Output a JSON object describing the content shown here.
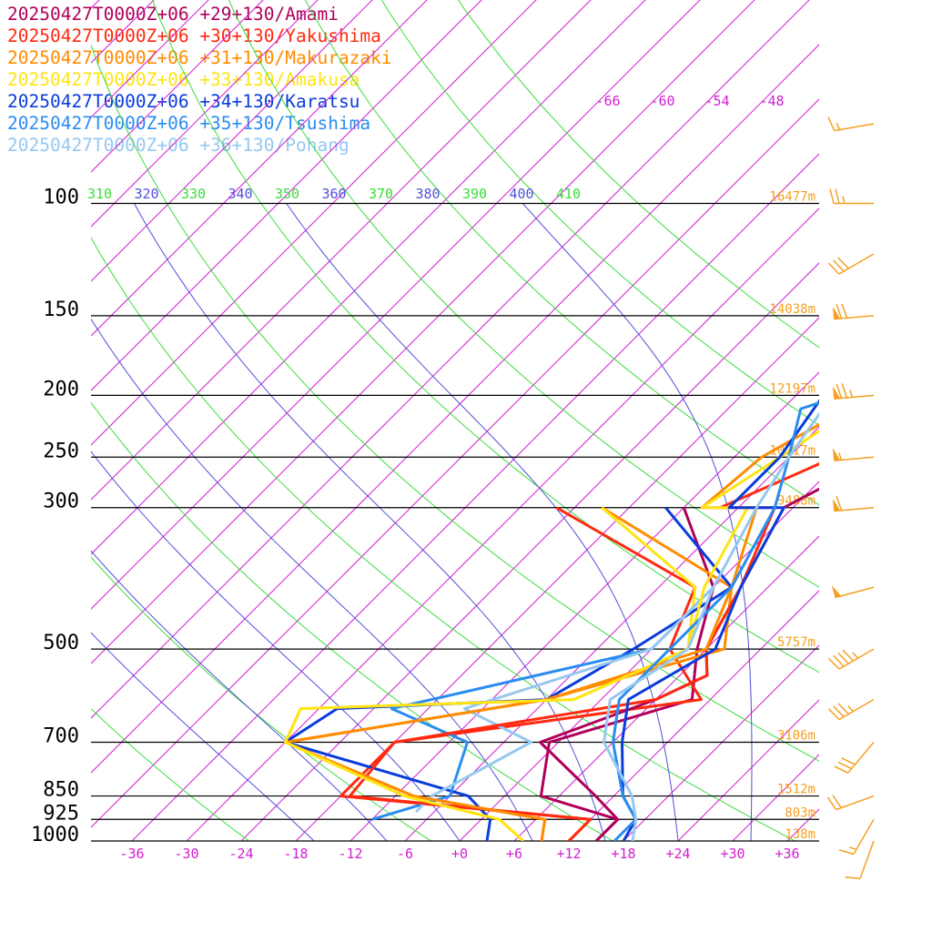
{
  "chart_data": {
    "type": "line",
    "y_scale": "log",
    "pressure_ticks": [
      100,
      150,
      200,
      250,
      300,
      500,
      700,
      850,
      925,
      1000
    ],
    "height_labels": [
      {
        "p": 100,
        "text": "16477m"
      },
      {
        "p": 150,
        "text": "14038m"
      },
      {
        "p": 200,
        "text": "12197m"
      },
      {
        "p": 250,
        "text": "10717m"
      },
      {
        "p": 300,
        "text": "9488m"
      },
      {
        "p": 500,
        "text": "5757m"
      },
      {
        "p": 700,
        "text": "3106m"
      },
      {
        "p": 850,
        "text": "1512m"
      },
      {
        "p": 925,
        "text": "803m"
      },
      {
        "p": 1000,
        "text": "138m"
      }
    ],
    "temperature_ticks": [
      -36,
      -30,
      -24,
      -18,
      -12,
      -6,
      0,
      6,
      12,
      18,
      24,
      30,
      36
    ],
    "temperature_tick_labels": [
      "-36",
      "-30",
      "-24",
      "-18",
      "-12",
      "-6",
      "+0",
      "+6",
      "+12",
      "+18",
      "+24",
      "+30",
      "+36"
    ],
    "top_temperature_labels": [
      "-66",
      "-60",
      "-54",
      "-48"
    ],
    "theta_labels": [
      {
        "text": "310",
        "color": "#3cdc3c"
      },
      {
        "text": "320",
        "color": "#5050dc"
      },
      {
        "text": "330",
        "color": "#3cdc3c"
      },
      {
        "text": "340",
        "color": "#5050dc"
      },
      {
        "text": "350",
        "color": "#3cdc3c"
      },
      {
        "text": "360",
        "color": "#5050dc"
      },
      {
        "text": "370",
        "color": "#3cdc3c"
      },
      {
        "text": "380",
        "color": "#5050dc"
      },
      {
        "text": "390",
        "color": "#3cdc3c"
      },
      {
        "text": "400",
        "color": "#5050dc"
      },
      {
        "text": "410",
        "color": "#3cdc3c"
      }
    ],
    "series": [
      {
        "name": "20250427T0000Z+06 +29+130/Amami",
        "color": "#b0005a",
        "points": [
          [
            15,
            1000
          ],
          [
            15,
            925
          ],
          [
            10,
            850
          ],
          [
            -2,
            700
          ],
          [
            6,
            600
          ],
          [
            9,
            550
          ],
          [
            6,
            500
          ],
          [
            3,
            400
          ],
          [
            -1,
            300
          ],
          [
            4,
            250
          ],
          [
            3,
            200
          ],
          [
            -3,
            150
          ],
          [
            -5,
            120
          ],
          [
            -7,
            100
          ],
          [
            -8,
            90
          ],
          [
            -13,
            80
          ],
          [
            -25,
            70
          ],
          [
            -37,
            60
          ],
          [
            -44,
            50
          ]
        ]
      },
      {
        "name": "20250427T0000Z+06 +30+130/Yakushima",
        "color": "#ff2a10",
        "points": [
          [
            12,
            1000
          ],
          [
            12,
            925
          ],
          [
            -17,
            850
          ],
          [
            -18,
            700
          ],
          [
            6,
            600
          ],
          [
            9,
            550
          ],
          [
            6,
            500
          ],
          [
            3,
            400
          ],
          [
            -2,
            300
          ],
          [
            -8,
            300
          ],
          [
            -1,
            250
          ],
          [
            2,
            200
          ],
          [
            -3,
            150
          ],
          [
            -4,
            120
          ],
          [
            -4,
            100
          ],
          [
            -10,
            80
          ],
          [
            -22,
            70
          ],
          [
            -36,
            60
          ],
          [
            -44,
            50
          ]
        ]
      },
      {
        "name": "20250427T0000Z+06 +31+130/Makurazaki",
        "color": "#ff8c00",
        "points": [
          [
            9,
            1000
          ],
          [
            7,
            925
          ],
          [
            -10,
            850
          ],
          [
            -30,
            700
          ],
          [
            -6,
            600
          ],
          [
            6,
            500
          ],
          [
            2,
            400
          ],
          [
            -4,
            300
          ],
          [
            -10,
            300
          ],
          [
            -9,
            250
          ],
          [
            -6,
            220
          ],
          [
            -1,
            200
          ],
          [
            -2,
            150
          ],
          [
            -3,
            120
          ],
          [
            0,
            100
          ],
          [
            -7,
            80
          ],
          [
            -18,
            70
          ],
          [
            -33,
            60
          ],
          [
            -44,
            50
          ]
        ]
      },
      {
        "name": "20250427T0000Z+06 +33+130/Amakusa",
        "color": "#ffe414",
        "points": [
          [
            7,
            1000
          ],
          [
            2,
            925
          ],
          [
            -11,
            850
          ],
          [
            -30,
            700
          ],
          [
            -32,
            620
          ],
          [
            -3,
            600
          ],
          [
            4,
            500
          ],
          [
            -1,
            400
          ],
          [
            -5,
            300
          ],
          [
            -10,
            300
          ],
          [
            -7,
            250
          ],
          [
            -5,
            220
          ],
          [
            -1,
            200
          ],
          [
            -3,
            150
          ],
          [
            0,
            120
          ],
          [
            3,
            100
          ],
          [
            -4,
            80
          ],
          [
            -16,
            70
          ],
          [
            -30,
            60
          ],
          [
            -44,
            50
          ]
        ]
      },
      {
        "name": "20250427T0000Z+06 +34+130/Karatsu",
        "color": "#0a3cdc",
        "points": [
          [
            18,
            1000
          ],
          [
            17,
            925
          ],
          [
            13,
            850
          ],
          [
            7,
            700
          ],
          [
            3,
            600
          ],
          [
            7,
            500
          ],
          [
            3,
            400
          ],
          [
            -1,
            300
          ],
          [
            -7,
            300
          ],
          [
            -7,
            250
          ],
          [
            -9,
            200
          ],
          [
            -3,
            200
          ],
          [
            1,
            150
          ],
          [
            0,
            130
          ],
          [
            4,
            100
          ],
          [
            3,
            90
          ],
          [
            -4,
            80
          ],
          [
            -15,
            70
          ],
          [
            -30,
            60
          ],
          [
            -44,
            50
          ]
        ]
      },
      {
        "name": "20250427T0000Z+06 +35+130/Tsushima",
        "color": "#2a8cf0",
        "points": [
          [
            17,
            1000
          ],
          [
            17,
            925
          ],
          [
            13,
            850
          ],
          [
            6,
            700
          ],
          [
            2,
            600
          ],
          [
            2,
            500
          ],
          [
            2,
            400
          ],
          [
            -2,
            300
          ],
          [
            -6,
            250
          ],
          [
            -10,
            210
          ],
          [
            -7,
            200
          ],
          [
            2,
            150
          ],
          [
            4,
            130
          ],
          [
            7,
            100
          ],
          [
            5,
            90
          ],
          [
            -3,
            80
          ],
          [
            -15,
            70
          ],
          [
            -30,
            60
          ],
          [
            -44,
            50
          ]
        ]
      },
      {
        "name": "20250427T0000Z+06 +36+130/Pohang",
        "color": "#96c8f0",
        "points": [
          [
            19,
            1000
          ],
          [
            17,
            925
          ],
          [
            14,
            850
          ],
          [
            5,
            700
          ],
          [
            1,
            600
          ],
          [
            4,
            500
          ],
          [
            0,
            400
          ],
          [
            -4,
            300
          ],
          [
            -6,
            250
          ],
          [
            -8,
            200
          ],
          [
            -2,
            170
          ],
          [
            3,
            150
          ],
          [
            6,
            130
          ],
          [
            10,
            100
          ],
          [
            8,
            90
          ],
          [
            0,
            80
          ],
          [
            -13,
            70
          ],
          [
            -28,
            60
          ],
          [
            -44,
            50
          ]
        ]
      }
    ],
    "dewpoint_series": [
      {
        "name": "20250427T0000Z+06 +29+130/Amami",
        "color": "#b0005a",
        "points": [
          [
            15,
            1000
          ],
          [
            15,
            925
          ],
          [
            4,
            850
          ],
          [
            -1,
            700
          ],
          [
            10,
            600
          ],
          [
            5,
            500
          ],
          [
            0,
            400
          ],
          [
            -12,
            300
          ]
        ]
      },
      {
        "name": "20250427T0000Z+06 +30+130/Yakushima",
        "color": "#ff2a10",
        "points": [
          [
            12,
            1000
          ],
          [
            12,
            925
          ],
          [
            -18,
            850
          ],
          [
            -18,
            700
          ],
          [
            11,
            600
          ],
          [
            2,
            500
          ],
          [
            -2,
            400
          ],
          [
            -26,
            300
          ]
        ]
      },
      {
        "name": "20250427T0000Z+06 +31+130/Makurazaki",
        "color": "#ff8c00",
        "points": [
          [
            9,
            1000
          ],
          [
            7,
            925
          ],
          [
            -10,
            850
          ],
          [
            -30,
            700
          ],
          [
            -6,
            600
          ],
          [
            8,
            500
          ],
          [
            2,
            400
          ],
          [
            -21,
            300
          ]
        ]
      },
      {
        "name": "20250427T0000Z+06 +33+130/Amakusa",
        "color": "#ffe414",
        "points": [
          [
            7,
            1000
          ],
          [
            2,
            925
          ],
          [
            -11,
            850
          ],
          [
            -30,
            700
          ],
          [
            -32,
            620
          ],
          [
            -3,
            600
          ],
          [
            4,
            500
          ],
          [
            -2,
            400
          ],
          [
            -21,
            300
          ]
        ]
      },
      {
        "name": "20250427T0000Z+06 +34+130/Karatsu",
        "color": "#0a3cdc",
        "points": [
          [
            3,
            1000
          ],
          [
            1,
            925
          ],
          [
            -4,
            850
          ],
          [
            -30,
            700
          ],
          [
            -28,
            620
          ],
          [
            -6,
            600
          ],
          [
            -2,
            500
          ],
          [
            2,
            400
          ],
          [
            -14,
            300
          ]
        ]
      },
      {
        "name": "20250427T0000Z+06 +35+130/Tsushima",
        "color": "#2a8cf0",
        "points": [
          [
            -12,
            925
          ],
          [
            -6,
            850
          ],
          [
            -10,
            700
          ],
          [
            -22,
            620
          ],
          [
            0,
            500
          ],
          [
            0,
            400
          ]
        ]
      },
      {
        "name": "20250427T0000Z+06 +36+130/Pohang",
        "color": "#96c8f0",
        "points": [
          [
            -8,
            900
          ],
          [
            -8,
            850
          ],
          [
            -3,
            700
          ],
          [
            -14,
            620
          ],
          [
            0,
            500
          ],
          [
            0,
            400
          ]
        ]
      }
    ],
    "wind_barb_color": "#f5a020",
    "wind_barbs": [
      {
        "p": 1000,
        "dir": 200,
        "speed": 10
      },
      {
        "p": 925,
        "dir": 210,
        "speed": 15
      },
      {
        "p": 850,
        "dir": 250,
        "speed": 20
      },
      {
        "p": 700,
        "dir": 220,
        "speed": 30
      },
      {
        "p": 600,
        "dir": 240,
        "speed": 35
      },
      {
        "p": 500,
        "dir": 240,
        "speed": 45
      },
      {
        "p": 400,
        "dir": 255,
        "speed": 50
      },
      {
        "p": 300,
        "dir": 265,
        "speed": 60
      },
      {
        "p": 250,
        "dir": 265,
        "speed": 55
      },
      {
        "p": 200,
        "dir": 265,
        "speed": 75
      },
      {
        "p": 150,
        "dir": 265,
        "speed": 70
      },
      {
        "p": 120,
        "dir": 240,
        "speed": 30
      },
      {
        "p": 100,
        "dir": 270,
        "speed": 25
      },
      {
        "p": 75,
        "dir": 260,
        "speed": 15
      }
    ],
    "isotherm_color": "#d21ed2",
    "dry_adiabat_color": "#3cdc3c",
    "moist_adiabat_color": "#5050dc"
  }
}
